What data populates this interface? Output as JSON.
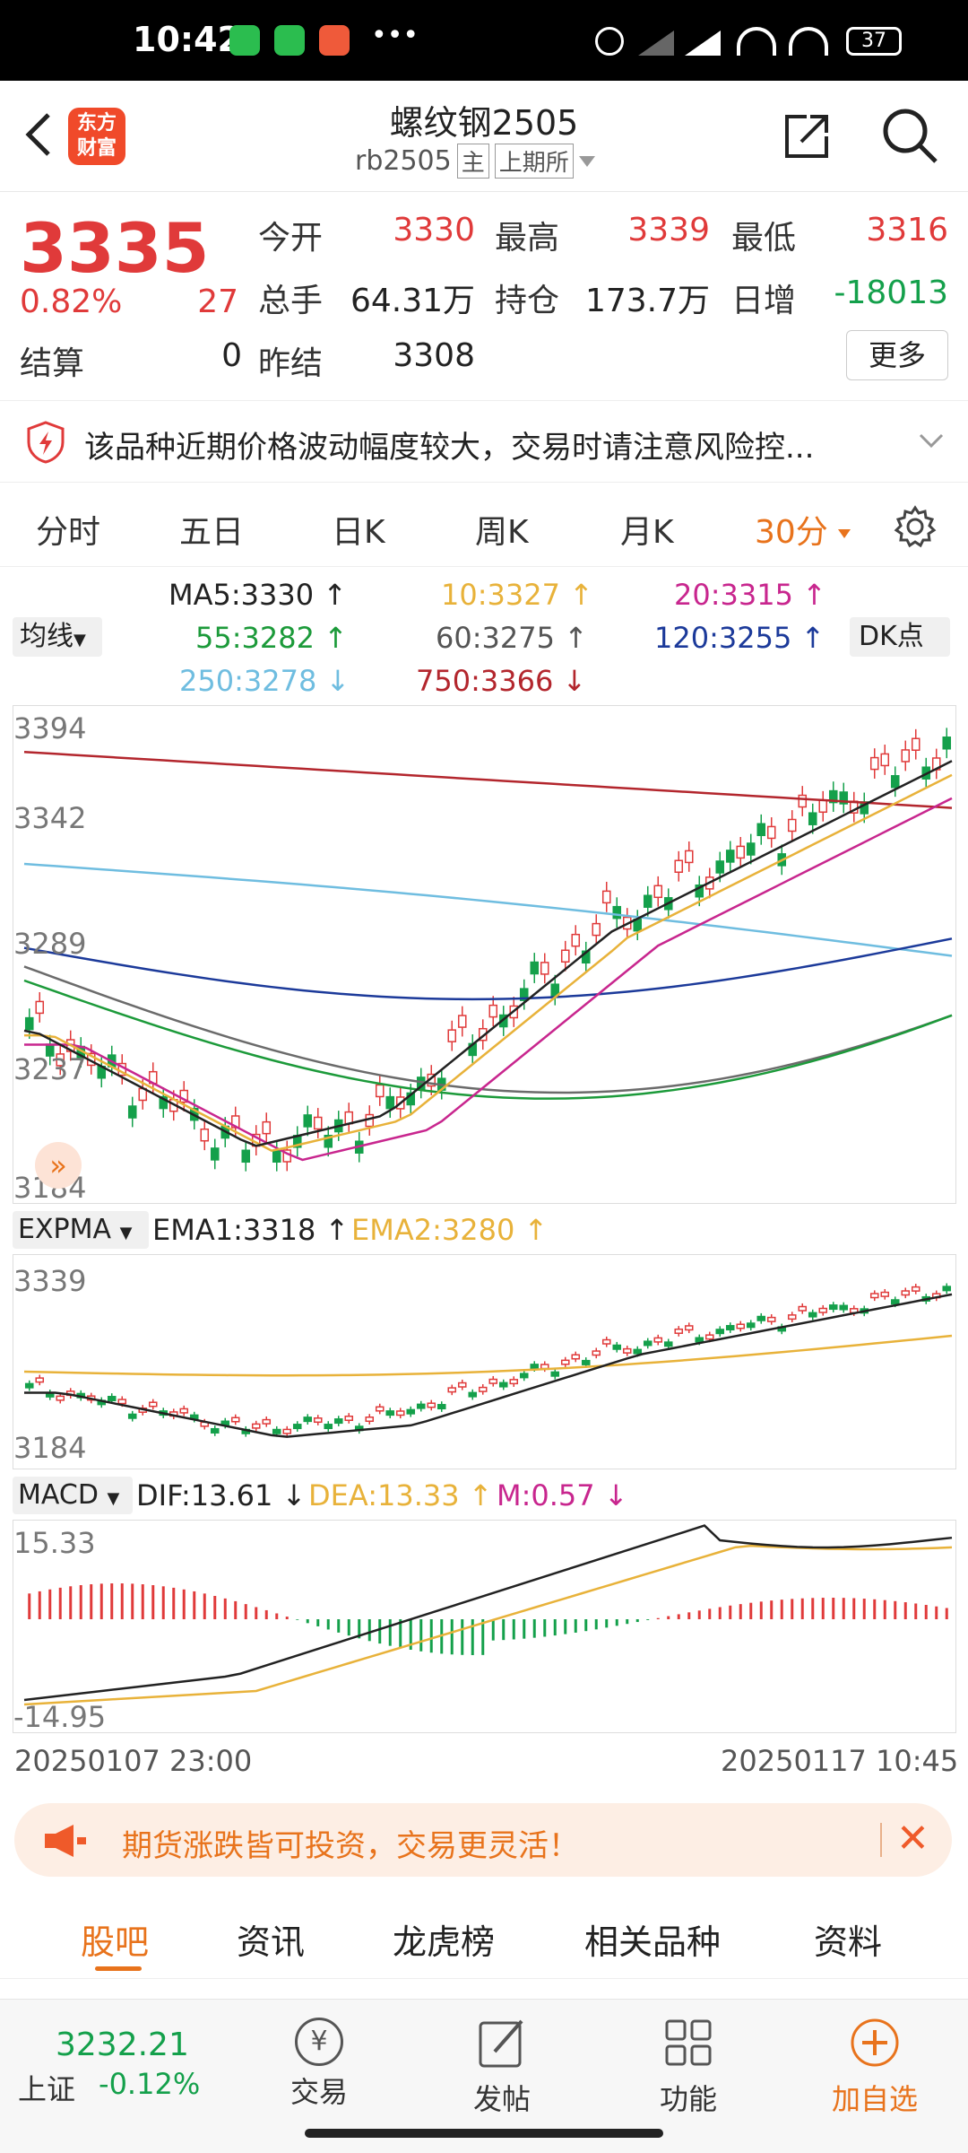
{
  "status_bar": {
    "time": "10:42",
    "dots": "•••",
    "battery": "37"
  },
  "header": {
    "logo_text_1": "东方",
    "logo_text_2": "财富",
    "title": "螺纹钢2505",
    "code": "rb2505",
    "main_tag": "主",
    "exchange": "上期所"
  },
  "quote": {
    "price": "3335",
    "change_pct": "0.82%",
    "change": "27",
    "open_label": "今开",
    "open": "3330",
    "high_label": "最高",
    "high": "3339",
    "low_label": "最低",
    "low": "3316",
    "volume_label": "总手",
    "volume": "64.31万",
    "oi_label": "持仓",
    "oi": "173.7万",
    "daily_inc_label": "日增",
    "daily_inc": "-18013",
    "settle_label": "结算",
    "settle": "0",
    "prev_settle_label": "昨结",
    "prev_settle": "3308",
    "more_label": "更多"
  },
  "notice": {
    "text": "该品种近期价格波动幅度较大，交易时请注意风险控..."
  },
  "tabs": {
    "items": [
      "分时",
      "五日",
      "日K",
      "周K",
      "月K"
    ],
    "active": "30分"
  },
  "ma": {
    "selector": "均线",
    "ma5": "MA5:3330",
    "ma10": "10:3327",
    "ma20": "20:3315",
    "ma55": "55:3282",
    "ma60": "60:3275",
    "ma120": "120:3255",
    "ma250": "250:3278",
    "ma750": "750:3366",
    "dk": "DK点",
    "colors": {
      "ma5": "#222222",
      "ma10": "#e8b23a",
      "ma20": "#c8268e",
      "ma55": "#1c9a3a",
      "ma60": "#6b6b6b",
      "ma120": "#1c3a9a",
      "ma250": "#6fbde0",
      "ma750": "#b3262d"
    }
  },
  "main_chart": {
    "y_labels": [
      "3394",
      "3342",
      "3289",
      "3237",
      "3184"
    ]
  },
  "expma": {
    "selector": "EXPMA",
    "ema1": "EMA1:3318",
    "ema2": "EMA2:3280",
    "y_labels": [
      "3339",
      "3184"
    ]
  },
  "macd": {
    "selector": "MACD",
    "dif": "DIF:13.61",
    "dea": "DEA:13.33",
    "m": "M:0.57",
    "y_labels": [
      "15.33",
      "-14.95"
    ]
  },
  "time_axis": {
    "start": "20250107 23:00",
    "end": "20250117 10:45"
  },
  "banner": {
    "text": "期货涨跌皆可投资，交易更灵活！"
  },
  "sub_tabs": {
    "items": [
      "股吧",
      "资讯",
      "龙虎榜",
      "相关品种",
      "资料"
    ]
  },
  "bottom_nav": {
    "index_value": "3232.21",
    "index_name": "上证",
    "index_change": "-0.12%",
    "trade": "交易",
    "post": "发帖",
    "func": "功能",
    "add": "加自选"
  }
}
